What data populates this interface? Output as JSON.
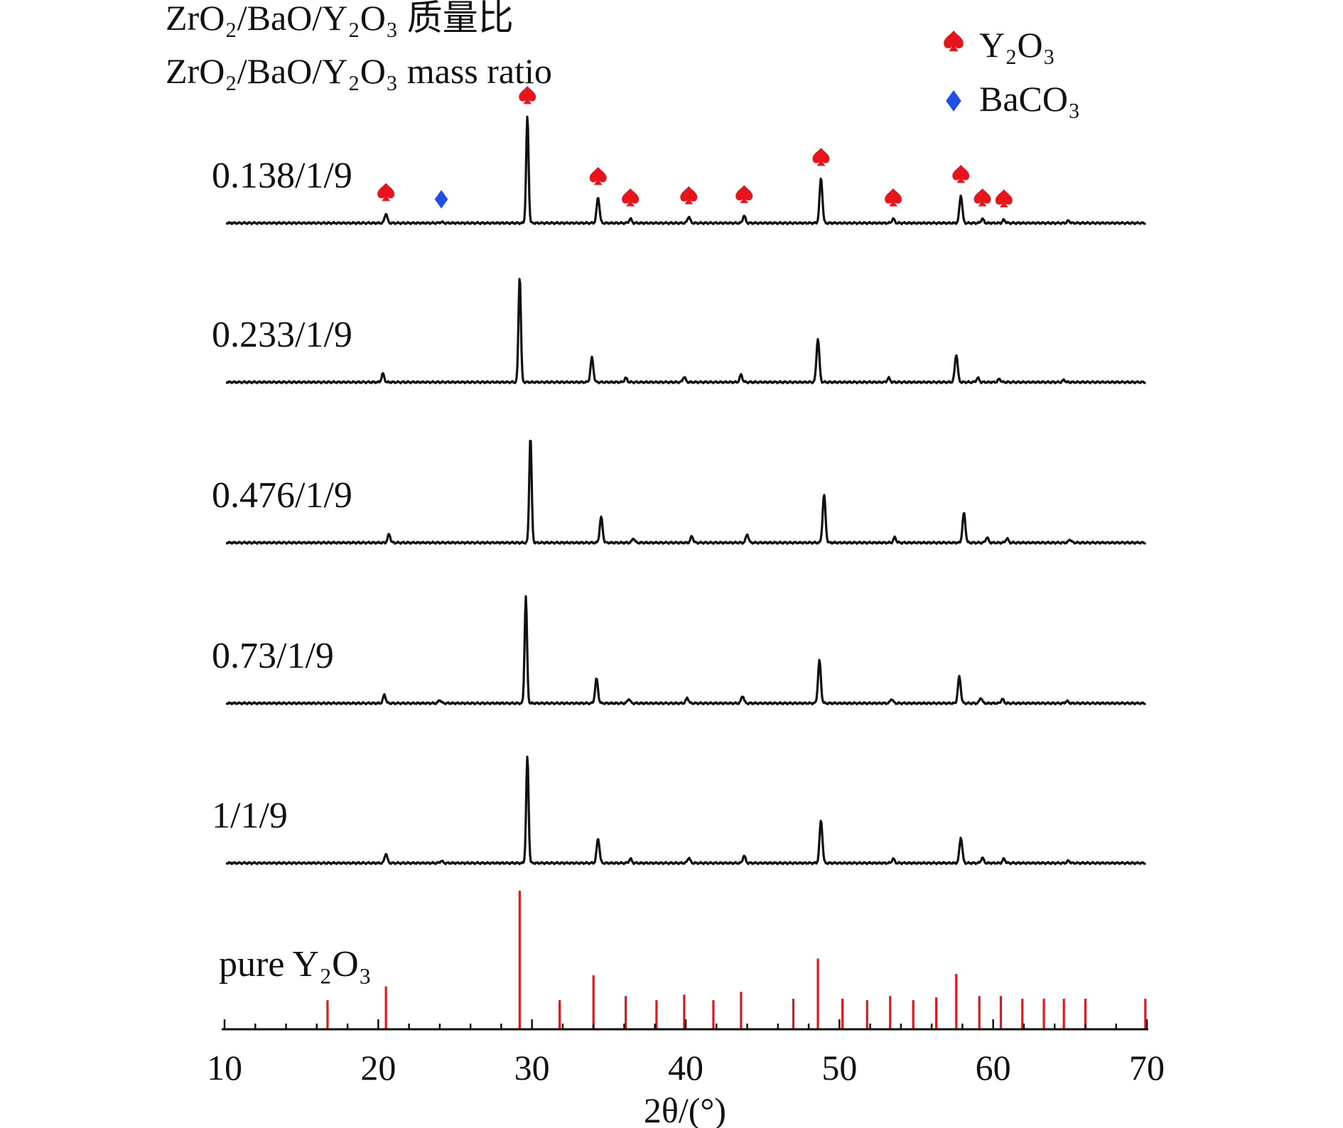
{
  "chart_data": {
    "type": "line",
    "title_line1": "ZrO₂/BaO/Y₂O₃ 质量比",
    "title_line2": "ZrO₂/BaO/Y₂O₃  mass ratio",
    "xlabel": "2θ/(°)",
    "ylabel": "",
    "xlim": [
      10,
      70
    ],
    "x_ticks": [
      10,
      20,
      30,
      40,
      50,
      60,
      70
    ],
    "grid": false,
    "legend_position": "top-right",
    "legend": [
      {
        "name": "Y₂O₃",
        "marker": "spade",
        "color": "#e8141b"
      },
      {
        "name": "BaCO₃",
        "marker": "diamond",
        "color": "#1d4fe8"
      }
    ],
    "series": [
      {
        "name": "0.138/1/9",
        "peaks": [
          {
            "x": 20.5,
            "h": 0.09
          },
          {
            "x": 24.1,
            "h": 0.01
          },
          {
            "x": 29.7,
            "h": 1.0
          },
          {
            "x": 34.3,
            "h": 0.24
          },
          {
            "x": 36.4,
            "h": 0.04
          },
          {
            "x": 40.2,
            "h": 0.06
          },
          {
            "x": 43.8,
            "h": 0.07
          },
          {
            "x": 48.8,
            "h": 0.42
          },
          {
            "x": 53.5,
            "h": 0.04
          },
          {
            "x": 57.9,
            "h": 0.26
          },
          {
            "x": 59.3,
            "h": 0.04
          },
          {
            "x": 60.7,
            "h": 0.03
          },
          {
            "x": 64.9,
            "h": 0.02
          }
        ]
      },
      {
        "name": "0.233/1/9",
        "peaks": [
          {
            "x": 20.3,
            "h": 0.08
          },
          {
            "x": 29.2,
            "h": 1.0
          },
          {
            "x": 33.9,
            "h": 0.23
          },
          {
            "x": 36.1,
            "h": 0.04
          },
          {
            "x": 39.9,
            "h": 0.05
          },
          {
            "x": 43.6,
            "h": 0.07
          },
          {
            "x": 48.6,
            "h": 0.41
          },
          {
            "x": 53.2,
            "h": 0.04
          },
          {
            "x": 57.6,
            "h": 0.26
          },
          {
            "x": 59.0,
            "h": 0.04
          },
          {
            "x": 60.4,
            "h": 0.03
          },
          {
            "x": 64.6,
            "h": 0.02
          }
        ]
      },
      {
        "name": "0.476/1/9",
        "peaks": [
          {
            "x": 20.7,
            "h": 0.08
          },
          {
            "x": 29.9,
            "h": 1.0
          },
          {
            "x": 34.5,
            "h": 0.24
          },
          {
            "x": 36.6,
            "h": 0.04
          },
          {
            "x": 40.4,
            "h": 0.06
          },
          {
            "x": 44.0,
            "h": 0.08
          },
          {
            "x": 49.0,
            "h": 0.45
          },
          {
            "x": 53.6,
            "h": 0.05
          },
          {
            "x": 58.1,
            "h": 0.28
          },
          {
            "x": 59.6,
            "h": 0.05
          },
          {
            "x": 60.9,
            "h": 0.04
          },
          {
            "x": 65.0,
            "h": 0.03
          }
        ]
      },
      {
        "name": "0.73/1/9",
        "peaks": [
          {
            "x": 20.4,
            "h": 0.08
          },
          {
            "x": 24.0,
            "h": 0.03
          },
          {
            "x": 29.6,
            "h": 1.0
          },
          {
            "x": 34.2,
            "h": 0.23
          },
          {
            "x": 36.3,
            "h": 0.04
          },
          {
            "x": 40.1,
            "h": 0.05
          },
          {
            "x": 43.7,
            "h": 0.07
          },
          {
            "x": 48.7,
            "h": 0.4
          },
          {
            "x": 53.4,
            "h": 0.04
          },
          {
            "x": 57.8,
            "h": 0.25
          },
          {
            "x": 59.2,
            "h": 0.05
          },
          {
            "x": 60.6,
            "h": 0.04
          },
          {
            "x": 64.8,
            "h": 0.02
          }
        ]
      },
      {
        "name": "1/1/9",
        "peaks": [
          {
            "x": 20.5,
            "h": 0.09
          },
          {
            "x": 24.1,
            "h": 0.02
          },
          {
            "x": 29.7,
            "h": 1.0
          },
          {
            "x": 34.3,
            "h": 0.23
          },
          {
            "x": 36.4,
            "h": 0.04
          },
          {
            "x": 40.2,
            "h": 0.05
          },
          {
            "x": 43.8,
            "h": 0.07
          },
          {
            "x": 48.8,
            "h": 0.4
          },
          {
            "x": 53.5,
            "h": 0.04
          },
          {
            "x": 57.9,
            "h": 0.24
          },
          {
            "x": 59.3,
            "h": 0.05
          },
          {
            "x": 60.7,
            "h": 0.04
          },
          {
            "x": 64.9,
            "h": 0.02
          }
        ]
      }
    ],
    "reference": {
      "name": "pure Y₂O₃",
      "color": "#e8141b",
      "lines": [
        {
          "x": 16.7,
          "h": 0.21
        },
        {
          "x": 20.5,
          "h": 0.31
        },
        {
          "x": 29.2,
          "h": 1.0
        },
        {
          "x": 31.8,
          "h": 0.21
        },
        {
          "x": 34.0,
          "h": 0.39
        },
        {
          "x": 36.1,
          "h": 0.24
        },
        {
          "x": 38.1,
          "h": 0.21
        },
        {
          "x": 39.9,
          "h": 0.25
        },
        {
          "x": 41.8,
          "h": 0.21
        },
        {
          "x": 43.6,
          "h": 0.27
        },
        {
          "x": 47.0,
          "h": 0.22
        },
        {
          "x": 48.6,
          "h": 0.51
        },
        {
          "x": 50.2,
          "h": 0.22
        },
        {
          "x": 51.8,
          "h": 0.21
        },
        {
          "x": 53.3,
          "h": 0.24
        },
        {
          "x": 54.8,
          "h": 0.21
        },
        {
          "x": 56.3,
          "h": 0.23
        },
        {
          "x": 57.6,
          "h": 0.4
        },
        {
          "x": 59.1,
          "h": 0.24
        },
        {
          "x": 60.5,
          "h": 0.24
        },
        {
          "x": 61.9,
          "h": 0.22
        },
        {
          "x": 63.3,
          "h": 0.22
        },
        {
          "x": 64.6,
          "h": 0.22
        },
        {
          "x": 66.0,
          "h": 0.22
        },
        {
          "x": 69.9,
          "h": 0.22
        }
      ]
    },
    "phase_markers": [
      {
        "series": "0.138/1/9",
        "phase": "Y₂O₃",
        "x": [
          20.5,
          29.7,
          34.3,
          36.4,
          40.2,
          43.8,
          48.8,
          53.5,
          57.9,
          59.3,
          60.7
        ]
      },
      {
        "series": "0.138/1/9",
        "phase": "BaCO₃",
        "x": [
          24.1
        ]
      }
    ]
  },
  "colors": {
    "trace": "#111111",
    "y2o3": "#e8141b",
    "baco3": "#1d4fe8"
  }
}
